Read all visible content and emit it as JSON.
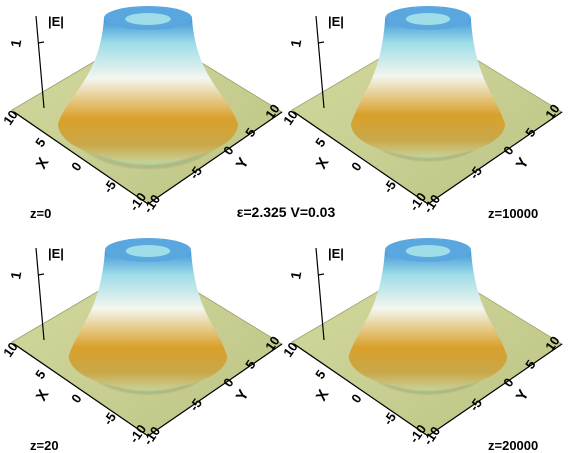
{
  "figure": {
    "center_caption": "ε=2.325 V=0.03",
    "colors": {
      "plane": "#c9cf92",
      "peak_blue": "#3f93d8",
      "cyan": "#9fdde8",
      "white": "#f3f6ef",
      "orange": "#d9a02a",
      "green_ring": "#a8dca6"
    },
    "panels": [
      {
        "z_label": "z=0",
        "ring_scale": 1.0,
        "axes": {
          "zlabel": "|E|",
          "ztick": "1",
          "xlabel": "X",
          "ylabel": "Y",
          "xticks": [
            "10",
            "5",
            "0",
            "-5",
            "-10"
          ],
          "yticks": [
            "-10",
            "-5",
            "0",
            "5",
            "10"
          ]
        }
      },
      {
        "z_label": "z=10000",
        "ring_scale": 0.82,
        "axes": {
          "zlabel": "|E|",
          "ztick": "1",
          "xlabel": "X",
          "ylabel": "Y",
          "xticks": [
            "10",
            "5",
            "0",
            "-5",
            "-10"
          ],
          "yticks": [
            "-10",
            "-5",
            "0",
            "5",
            "10"
          ]
        }
      },
      {
        "z_label": "z=20",
        "ring_scale": 0.85,
        "axes": {
          "zlabel": "|E|",
          "ztick": "1",
          "xlabel": "X",
          "ylabel": "Y",
          "xticks": [
            "10",
            "5",
            "0",
            "-5",
            "-10"
          ],
          "yticks": [
            "-10",
            "-5",
            "0",
            "5",
            "10"
          ]
        }
      },
      {
        "z_label": "z=20000",
        "ring_scale": 0.85,
        "axes": {
          "zlabel": "|E|",
          "ztick": "1",
          "xlabel": "X",
          "ylabel": "Y",
          "xticks": [
            "10",
            "5",
            "0",
            "-5",
            "-10"
          ],
          "yticks": [
            "-10",
            "-5",
            "0",
            "5",
            "10"
          ]
        }
      }
    ]
  }
}
